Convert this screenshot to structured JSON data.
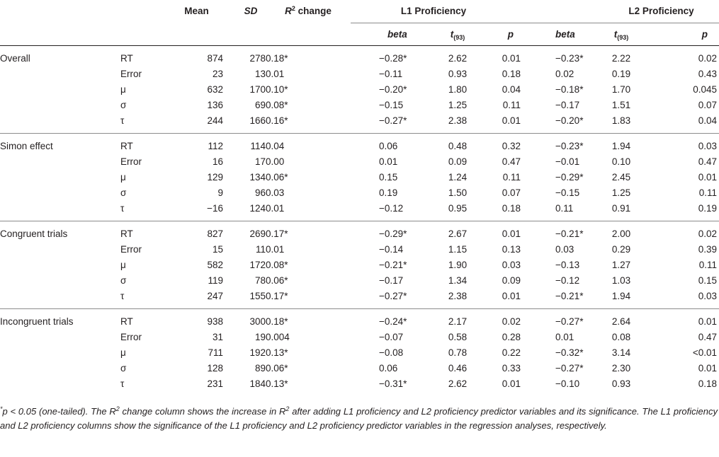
{
  "headers": {
    "mean": "Mean",
    "sd": "SD",
    "r2_r": "R",
    "r2_sup": "2",
    "r2_change": " change",
    "l1": "L1 Proficiency",
    "l2": "L2 Proficiency",
    "beta": "beta",
    "t": "t",
    "t_sub": "(93)",
    "p": "p"
  },
  "groups": [
    {
      "name": "Overall",
      "rows": [
        {
          "label": "RT",
          "mean": "874",
          "sd": "278",
          "r2": "0.18*",
          "l1_beta": "−0.28*",
          "l1_t": "2.62",
          "l1_p": "0.01",
          "l2_beta": "−0.23*",
          "l2_t": "2.22",
          "l2_p": "0.02"
        },
        {
          "label": "Error",
          "mean": "23",
          "sd": "13",
          "r2": "0.01",
          "l1_beta": "−0.11",
          "l1_t": "0.93",
          "l1_p": "0.18",
          "l2_beta": "0.02",
          "l2_t": "0.19",
          "l2_p": "0.43"
        },
        {
          "label": "μ",
          "mean": "632",
          "sd": "170",
          "r2": "0.10*",
          "l1_beta": "−0.20*",
          "l1_t": "1.80",
          "l1_p": "0.04",
          "l2_beta": "−0.18*",
          "l2_t": "1.70",
          "l2_p": "0.045"
        },
        {
          "label": "σ",
          "mean": "136",
          "sd": "69",
          "r2": "0.08*",
          "l1_beta": "−0.15",
          "l1_t": "1.25",
          "l1_p": "0.11",
          "l2_beta": "−0.17",
          "l2_t": "1.51",
          "l2_p": "0.07"
        },
        {
          "label": "τ",
          "mean": "244",
          "sd": "166",
          "r2": "0.16*",
          "l1_beta": "−0.27*",
          "l1_t": "2.38",
          "l1_p": "0.01",
          "l2_beta": "−0.20*",
          "l2_t": "1.83",
          "l2_p": "0.04"
        }
      ]
    },
    {
      "name": "Simon effect",
      "rows": [
        {
          "label": "RT",
          "mean": "112",
          "sd": "114",
          "r2": "0.04",
          "l1_beta": "0.06",
          "l1_t": "0.48",
          "l1_p": "0.32",
          "l2_beta": "−0.23*",
          "l2_t": "1.94",
          "l2_p": "0.03"
        },
        {
          "label": "Error",
          "mean": "16",
          "sd": "17",
          "r2": "0.00",
          "l1_beta": "0.01",
          "l1_t": "0.09",
          "l1_p": "0.47",
          "l2_beta": "−0.01",
          "l2_t": "0.10",
          "l2_p": "0.47"
        },
        {
          "label": "μ",
          "mean": "129",
          "sd": "134",
          "r2": "0.06*",
          "l1_beta": "0.15",
          "l1_t": "1.24",
          "l1_p": "0.11",
          "l2_beta": "−0.29*",
          "l2_t": "2.45",
          "l2_p": "0.01"
        },
        {
          "label": "σ",
          "mean": "9",
          "sd": "96",
          "r2": "0.03",
          "l1_beta": "0.19",
          "l1_t": "1.50",
          "l1_p": "0.07",
          "l2_beta": "−0.15",
          "l2_t": "1.25",
          "l2_p": "0.11"
        },
        {
          "label": "τ",
          "mean": "−16",
          "sd": "124",
          "r2": "0.01",
          "l1_beta": "−0.12",
          "l1_t": "0.95",
          "l1_p": "0.18",
          "l2_beta": "0.11",
          "l2_t": "0.91",
          "l2_p": "0.19"
        }
      ]
    },
    {
      "name": "Congruent trials",
      "rows": [
        {
          "label": "RT",
          "mean": "827",
          "sd": "269",
          "r2": "0.17*",
          "l1_beta": "−0.29*",
          "l1_t": "2.67",
          "l1_p": "0.01",
          "l2_beta": "−0.21*",
          "l2_t": "2.00",
          "l2_p": "0.02"
        },
        {
          "label": "Error",
          "mean": "15",
          "sd": "11",
          "r2": "0.01",
          "l1_beta": "−0.14",
          "l1_t": "1.15",
          "l1_p": "0.13",
          "l2_beta": "0.03",
          "l2_t": "0.29",
          "l2_p": "0.39"
        },
        {
          "label": "μ",
          "mean": "582",
          "sd": "172",
          "r2": "0.08*",
          "l1_beta": "−0.21*",
          "l1_t": "1.90",
          "l1_p": "0.03",
          "l2_beta": "−0.13",
          "l2_t": "1.27",
          "l2_p": "0.11"
        },
        {
          "label": "σ",
          "mean": "119",
          "sd": "78",
          "r2": "0.06*",
          "l1_beta": "−0.17",
          "l1_t": "1.34",
          "l1_p": "0.09",
          "l2_beta": "−0.12",
          "l2_t": "1.03",
          "l2_p": "0.15"
        },
        {
          "label": "τ",
          "mean": "247",
          "sd": "155",
          "r2": "0.17*",
          "l1_beta": "−0.27*",
          "l1_t": "2.38",
          "l1_p": "0.01",
          "l2_beta": "−0.21*",
          "l2_t": "1.94",
          "l2_p": "0.03"
        }
      ]
    },
    {
      "name": "Incongruent trials",
      "rows": [
        {
          "label": "RT",
          "mean": "938",
          "sd": "300",
          "r2": "0.18*",
          "l1_beta": "−0.24*",
          "l1_t": "2.17",
          "l1_p": "0.02",
          "l2_beta": "−0.27*",
          "l2_t": "2.64",
          "l2_p": "0.01"
        },
        {
          "label": "Error",
          "mean": "31",
          "sd": "19",
          "r2": "0.004",
          "l1_beta": "−0.07",
          "l1_t": "0.58",
          "l1_p": "0.28",
          "l2_beta": "0.01",
          "l2_t": "0.08",
          "l2_p": "0.47"
        },
        {
          "label": "μ",
          "mean": "711",
          "sd": "192",
          "r2": "0.13*",
          "l1_beta": "−0.08",
          "l1_t": "0.78",
          "l1_p": "0.22",
          "l2_beta": "−0.32*",
          "l2_t": "3.14",
          "l2_p": "<0.01"
        },
        {
          "label": "σ",
          "mean": "128",
          "sd": "89",
          "r2": "0.06*",
          "l1_beta": "0.06",
          "l1_t": "0.46",
          "l1_p": "0.33",
          "l2_beta": "−0.27*",
          "l2_t": "2.30",
          "l2_p": "0.01"
        },
        {
          "label": "τ",
          "mean": "231",
          "sd": "184",
          "r2": "0.13*",
          "l1_beta": "−0.31*",
          "l1_t": "2.62",
          "l1_p": "0.01",
          "l2_beta": "−0.10",
          "l2_t": "0.93",
          "l2_p": "0.18"
        }
      ]
    }
  ],
  "footnote": {
    "mark": "*",
    "part1": "p < 0.05 (one-tailed). The R",
    "sup1": "2",
    "part2": " change column shows the increase in R",
    "sup2": "2",
    "part3": " after adding L1 proficiency and L2 proficiency predictor variables and its significance. The L1 proficiency and L2 proficiency columns show the significance of the L1 proficiency and L2 proficiency predictor variables in the regression analyses, respectively."
  }
}
